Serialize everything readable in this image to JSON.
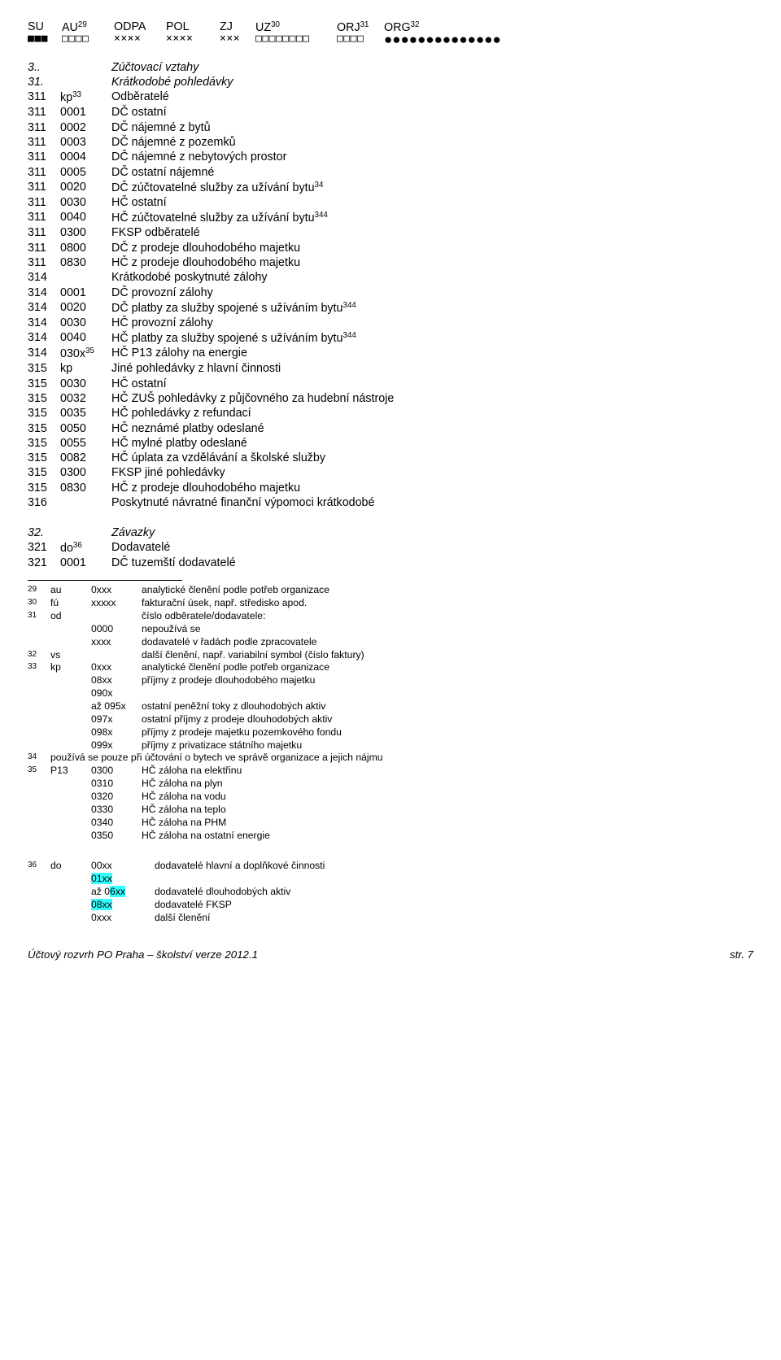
{
  "header": {
    "su": "SU",
    "au": "AU",
    "au_sup": "29",
    "odpa": "ODPA",
    "pol": "POL",
    "zj": "ZJ",
    "uz": "UZ",
    "uz_sup": "30",
    "orj": "ORJ",
    "orj_sup": "31",
    "org": "ORG",
    "org_sup": "32"
  },
  "boxes": {
    "su": "■■■",
    "au": "□□□□",
    "odpa": "××××",
    "pol": "××××",
    "zj": "×××",
    "uz": "□□□□□□□□",
    "orj": "□□□□",
    "org": "●●●●●●●●●●●●●●"
  },
  "rows": [
    {
      "c1": "3..",
      "c2": "",
      "c3": "Zúčtovací vztahy",
      "it": true
    },
    {
      "c1": "31.",
      "c2": "",
      "c3": "Krátkodobé pohledávky",
      "it": true
    },
    {
      "c1": "311",
      "c2": "kp",
      "sup": "33",
      "c3": "Odběratelé"
    },
    {
      "c1": "311",
      "c2": "0001",
      "c3": "DČ ostatní"
    },
    {
      "c1": "311",
      "c2": "0002",
      "c3": "DČ nájemné z bytů"
    },
    {
      "c1": "311",
      "c2": "0003",
      "c3": "DČ nájemné z pozemků"
    },
    {
      "c1": "311",
      "c2": "0004",
      "c3": "DČ nájemné z nebytových prostor"
    },
    {
      "c1": "311",
      "c2": "0005",
      "c3": "DČ ostatní nájemné"
    },
    {
      "c1": "311",
      "c2": "0020",
      "c3": "DČ zúčtovatelné služby za užívání bytu",
      "sup3": "34"
    },
    {
      "c1": "311",
      "c2": "0030",
      "c3": "HČ ostatní"
    },
    {
      "c1": "311",
      "c2": "0040",
      "c3": "HČ zúčtovatelné služby za užívání bytu",
      "sup3": "344"
    },
    {
      "c1": "311",
      "c2": "0300",
      "c3": "FKSP odběratelé"
    },
    {
      "c1": "311",
      "c2": "0800",
      "c3": "DČ z prodeje dlouhodobého majetku"
    },
    {
      "c1": "311",
      "c2": "0830",
      "c3": "HČ z prodeje dlouhodobého majetku"
    },
    {
      "c1": "314",
      "c2": "",
      "c3": "Krátkodobé poskytnuté zálohy"
    },
    {
      "c1": "314",
      "c2": "0001",
      "c3": "DČ provozní zálohy"
    },
    {
      "c1": "314",
      "c2": "0020",
      "c3": "DČ platby za služby spojené s užíváním bytu",
      "sup3": "344"
    },
    {
      "c1": "314",
      "c2": "0030",
      "c3": "HČ provozní zálohy"
    },
    {
      "c1": "314",
      "c2": "0040",
      "c3": "HČ platby za služby spojené s užíváním bytu",
      "sup3": "344"
    },
    {
      "c1": "314",
      "c2": "030x",
      "sup": "35",
      "c3": "HČ P13 zálohy na energie"
    },
    {
      "c1": "315",
      "c2": "kp",
      "c3": "Jiné pohledávky z hlavní činnosti"
    },
    {
      "c1": "315",
      "c2": "0030",
      "c3": "HČ ostatní"
    },
    {
      "c1": "315",
      "c2": "0032",
      "c3": "HČ ZUŠ pohledávky z půjčovného za hudební nástroje"
    },
    {
      "c1": "315",
      "c2": "0035",
      "c3": "HČ pohledávky z refundací"
    },
    {
      "c1": "315",
      "c2": "0050",
      "c3": "HČ neznámé platby odeslané"
    },
    {
      "c1": "315",
      "c2": "0055",
      "c3": "HČ mylné platby odeslané"
    },
    {
      "c1": "315",
      "c2": "0082",
      "c3": "HČ úplata za vzdělávání a školské služby"
    },
    {
      "c1": "315",
      "c2": "0300",
      "c3": "FKSP jiné pohledávky"
    },
    {
      "c1": "315",
      "c2": "0830",
      "c3": "HČ z prodeje dlouhodobého majetku"
    },
    {
      "c1": "316",
      "c2": "",
      "c3": "Poskytnuté návratné finanční výpomoci krátkodobé"
    },
    {
      "gap": true
    },
    {
      "c1": "32.",
      "c2": "",
      "c3": "Závazky",
      "it": true
    },
    {
      "c1": "321",
      "c2": "do",
      "sup": "36",
      "c3": "Dodavatelé"
    },
    {
      "c1": "321",
      "c2": "0001",
      "c3": "DČ tuzemští dodavatelé"
    }
  ],
  "fn": [
    {
      "n": "29",
      "a": "au",
      "b": "0xxx",
      "t": "analytické členění podle potřeb organizace"
    },
    {
      "n": "30",
      "a": "fú",
      "b": "xxxxx",
      "t": "fakturační úsek, např. středisko apod."
    },
    {
      "n": "31",
      "a": "od",
      "b": "",
      "t": "číslo odběratele/dodavatele:"
    },
    {
      "n": "",
      "a": "",
      "b": "0000",
      "t": "nepoužívá se"
    },
    {
      "n": "",
      "a": "",
      "b": "xxxx",
      "t": "dodavatelé v řadách podle zpracovatele"
    },
    {
      "n": "32",
      "a": "vs",
      "b": "",
      "t": "další členění, např. variabilní symbol (číslo faktury)"
    },
    {
      "n": "33",
      "a": "kp",
      "b": "0xxx",
      "t": "analytické členění podle potřeb organizace"
    },
    {
      "n": "",
      "a": "",
      "b": "08xx",
      "t": "příjmy z prodeje dlouhodobého majetku"
    },
    {
      "n": "",
      "a": "",
      "b": "090x",
      "t": ""
    },
    {
      "n": "",
      "a": "",
      "b": "až 095x",
      "t": "ostatní peněžní toky z dlouhodobých aktiv"
    },
    {
      "n": "",
      "a": "",
      "b": "097x",
      "t": "ostatní příjmy z prodeje dlouhodobých aktiv"
    },
    {
      "n": "",
      "a": "",
      "b": "098x",
      "t": "příjmy z prodeje majetku pozemkového fondu"
    },
    {
      "n": "",
      "a": "",
      "b": "099x",
      "t": "příjmy z privatizace státního majetku"
    },
    {
      "n": "34",
      "full": "používá se pouze při účtování o bytech ve správě organizace a jejich nájmu"
    },
    {
      "n": "35",
      "a": "P13",
      "b": "0300",
      "t": "HČ záloha na elektřinu"
    },
    {
      "n": "",
      "a": "",
      "b": "0310",
      "t": "HČ záloha na plyn"
    },
    {
      "n": "",
      "a": "",
      "b": "0320",
      "t": "HČ záloha na vodu"
    },
    {
      "n": "",
      "a": "",
      "b": "0330",
      "t": "HČ záloha na teplo"
    },
    {
      "n": "",
      "a": "",
      "b": "0340",
      "t": "HČ záloha na PHM"
    },
    {
      "n": "",
      "a": "",
      "b": "0350",
      "t": "HČ záloha na ostatní energie"
    }
  ],
  "fn36": {
    "n": "36",
    "a": "do",
    "l": [
      {
        "b": "00xx",
        "t": "dodavatelé hlavní a doplňkové činnosti",
        "hl": false
      },
      {
        "b": "01xx",
        "t": "",
        "hl": true,
        "hlb": true
      },
      {
        "b": "až 06xx",
        "t": "dodavatelé  dlouhodobých aktiv",
        "hlpart": "6xx"
      },
      {
        "b": "08xx",
        "t": "dodavatelé FKSP",
        "hlb": true
      },
      {
        "b": "0xxx",
        "t": "další členění"
      }
    ]
  },
  "footer": {
    "left": "Účtový rozvrh PO Praha – školství  verze 2012.1",
    "right": "str. 7"
  }
}
